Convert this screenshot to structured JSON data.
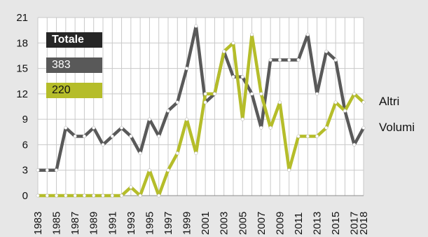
{
  "chart_data": {
    "type": "line",
    "x": [
      1983,
      1984,
      1985,
      1986,
      1987,
      1988,
      1989,
      1990,
      1991,
      1992,
      1993,
      1994,
      1995,
      1996,
      1997,
      1998,
      1999,
      2000,
      2001,
      2002,
      2003,
      2004,
      2005,
      2006,
      2007,
      2008,
      2009,
      2010,
      2011,
      2012,
      2013,
      2014,
      2015,
      2016,
      2017,
      2018
    ],
    "x_tick_labels": [
      "1983",
      "1985",
      "1987",
      "1989",
      "1991",
      "1993",
      "1995",
      "1997",
      "1999",
      "2001",
      "2003",
      "2005",
      "2007",
      "2009",
      "2011",
      "2013",
      "2015",
      "2017",
      "2018"
    ],
    "ylim": [
      0,
      21
    ],
    "y_ticks": [
      "0",
      "3",
      "6",
      "9",
      "12",
      "15",
      "18",
      "21"
    ],
    "grid": true,
    "series": [
      {
        "name": "Altri",
        "color": "#595959",
        "values": [
          3,
          3,
          3,
          8,
          7,
          7,
          8,
          6,
          7,
          8,
          7,
          5,
          9,
          7,
          10,
          11,
          15,
          20,
          11,
          12,
          17,
          14,
          14,
          12,
          8,
          16,
          16,
          16,
          16,
          19,
          12,
          17,
          16,
          10,
          6,
          8
        ]
      },
      {
        "name": "Volumi",
        "color": "#b5bd2a",
        "values": [
          0,
          0,
          0,
          0,
          0,
          0,
          0,
          0,
          0,
          0,
          1,
          0,
          3,
          0,
          3,
          5,
          9,
          5,
          12,
          12,
          17,
          18,
          9,
          19,
          12,
          8,
          11,
          3,
          7,
          7,
          7,
          8,
          11,
          10,
          12,
          11
        ]
      }
    ],
    "legend": {
      "title": "Totale",
      "values": [
        "383",
        "220"
      ],
      "labels": [
        "Altri",
        "Volumi"
      ]
    }
  }
}
